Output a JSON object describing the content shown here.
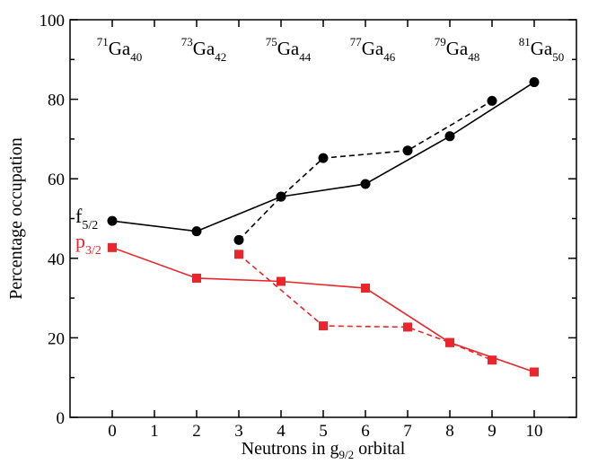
{
  "chart_data": {
    "type": "line",
    "title": "",
    "xlabel": {
      "base": "Neutrons in g",
      "sub": "9/2",
      "suffix": " orbital"
    },
    "ylabel": "Percentage occupation",
    "xlim": [
      -1,
      11
    ],
    "ylim": [
      0,
      100
    ],
    "x_ticks": [
      0,
      1,
      2,
      3,
      4,
      5,
      6,
      7,
      8,
      9,
      10
    ],
    "y_ticks": [
      0,
      20,
      40,
      60,
      80,
      100
    ],
    "grid": false,
    "series": [
      {
        "name": "f5/2",
        "label_base": "f",
        "label_sub": "5/2",
        "color": "#000000",
        "marker": "circle",
        "dash": "solid",
        "x": [
          0,
          2,
          4,
          6,
          8,
          10
        ],
        "y": [
          49.4,
          46.8,
          55.5,
          58.7,
          70.7,
          84.3
        ]
      },
      {
        "name": "f5/2 (dashed)",
        "color": "#000000",
        "marker": "circle",
        "dash": "dashed",
        "x": [
          3,
          4,
          5,
          7,
          9
        ],
        "y": [
          44.6,
          55.5,
          65.2,
          67.1,
          79.6
        ]
      },
      {
        "name": "p3/2",
        "label_base": "p",
        "label_sub": "3/2",
        "color": "#e8262b",
        "marker": "square",
        "dash": "solid",
        "x": [
          0,
          2,
          4,
          6,
          8,
          10
        ],
        "y": [
          42.7,
          35.0,
          34.2,
          32.5,
          18.8,
          11.4
        ]
      },
      {
        "name": "p3/2 (dashed)",
        "color": "#e8262b",
        "marker": "square",
        "dash": "dashed",
        "x": [
          3,
          5,
          7,
          8,
          9
        ],
        "y": [
          41.0,
          23.0,
          22.7,
          18.8,
          14.4
        ]
      }
    ],
    "annotations": [
      {
        "mass": "71",
        "el": "Ga",
        "n": "40",
        "x": 0
      },
      {
        "mass": "73",
        "el": "Ga",
        "n": "42",
        "x": 2
      },
      {
        "mass": "75",
        "el": "Ga",
        "n": "44",
        "x": 4
      },
      {
        "mass": "77",
        "el": "Ga",
        "n": "46",
        "x": 6
      },
      {
        "mass": "79",
        "el": "Ga",
        "n": "48",
        "x": 8
      },
      {
        "mass": "81",
        "el": "Ga",
        "n": "50",
        "x": 10
      }
    ]
  }
}
